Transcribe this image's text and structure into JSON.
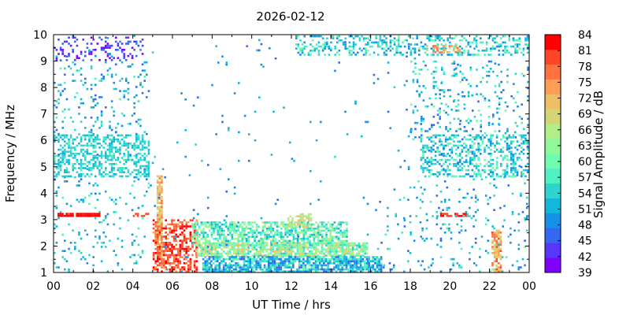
{
  "chart_data": {
    "type": "heatmap",
    "title": "2026-02-12",
    "xlabel": "UT Time / hrs",
    "ylabel": "Frequency / MHz",
    "colorbar_label": "Signal Amplitude / dB",
    "xlim": [
      0,
      24
    ],
    "ylim": [
      1,
      10
    ],
    "x_ticks": [
      "00",
      "02",
      "04",
      "06",
      "08",
      "10",
      "12",
      "14",
      "16",
      "18",
      "20",
      "22",
      "00"
    ],
    "y_ticks": [
      "1",
      "2",
      "3",
      "4",
      "5",
      "6",
      "7",
      "8",
      "9",
      "10"
    ],
    "colorbar_ticks": [
      "39",
      "42",
      "45",
      "48",
      "51",
      "54",
      "57",
      "60",
      "63",
      "66",
      "69",
      "72",
      "75",
      "78",
      "81",
      "84"
    ],
    "colorbar_range": [
      39,
      84
    ],
    "colormap": [
      "#7f00ff",
      "#5a35fa",
      "#3568f2",
      "#1591e8",
      "#12b7dc",
      "#2fd4cf",
      "#4ff0c1",
      "#6ffcae",
      "#8ff89a",
      "#b2ee87",
      "#d4d676",
      "#eec066",
      "#fe9e54",
      "#ff7240",
      "#ff4529",
      "#ff0000"
    ],
    "regions": [
      {
        "name": "night-upper-band",
        "t": [
          0.0,
          4.5
        ],
        "f": [
          9.0,
          9.9
        ],
        "db": [
          39,
          48
        ],
        "density": 0.25
      },
      {
        "name": "night-lower-band",
        "t": [
          0.0,
          4.8
        ],
        "f": [
          4.6,
          6.2
        ],
        "db": [
          51,
          57
        ],
        "density": 0.45
      },
      {
        "name": "night-mid-scatter",
        "t": [
          0.0,
          4.8
        ],
        "f": [
          6.2,
          9.0
        ],
        "db": [
          45,
          57
        ],
        "density": 0.1
      },
      {
        "name": "night-low-scatter",
        "t": [
          0.0,
          4.8
        ],
        "f": [
          1.0,
          4.6
        ],
        "db": [
          48,
          57
        ],
        "density": 0.05
      },
      {
        "name": "red-line-left",
        "t": [
          0.2,
          2.3
        ],
        "f": [
          3.1,
          3.2
        ],
        "db": [
          81,
          84
        ],
        "density": 0.9
      },
      {
        "name": "red-line-mid",
        "t": [
          4.0,
          4.8
        ],
        "f": [
          3.1,
          3.2
        ],
        "db": [
          78,
          81
        ],
        "density": 0.5
      },
      {
        "name": "dawn-spike",
        "t": [
          5.2,
          5.5
        ],
        "f": [
          1.5,
          4.6
        ],
        "db": [
          66,
          78
        ],
        "density": 0.85
      },
      {
        "name": "dawn-red-block",
        "t": [
          5.0,
          7.2
        ],
        "f": [
          1.0,
          3.0
        ],
        "db": [
          75,
          84
        ],
        "density": 0.55
      },
      {
        "name": "day-band-upper",
        "t": [
          7.0,
          14.8
        ],
        "f": [
          2.0,
          2.9
        ],
        "db": [
          51,
          66
        ],
        "density": 0.65
      },
      {
        "name": "day-band-mid",
        "t": [
          7.2,
          15.8
        ],
        "f": [
          1.6,
          2.1
        ],
        "db": [
          54,
          72
        ],
        "density": 0.75
      },
      {
        "name": "day-band-lower",
        "t": [
          7.5,
          16.5
        ],
        "f": [
          1.0,
          1.6
        ],
        "db": [
          45,
          60
        ],
        "density": 0.8
      },
      {
        "name": "day-bump-orange",
        "t": [
          11.8,
          13.0
        ],
        "f": [
          2.7,
          3.2
        ],
        "db": [
          63,
          72
        ],
        "density": 0.6
      },
      {
        "name": "evening-upper",
        "t": [
          12.2,
          24.0
        ],
        "f": [
          9.2,
          9.9
        ],
        "db": [
          48,
          60
        ],
        "density": 0.35
      },
      {
        "name": "evening-orange",
        "t": [
          18.8,
          20.5
        ],
        "f": [
          9.3,
          9.6
        ],
        "db": [
          69,
          78
        ],
        "density": 0.45
      },
      {
        "name": "evening-mid",
        "t": [
          18.0,
          24.0
        ],
        "f": [
          6.0,
          9.0
        ],
        "db": [
          45,
          60
        ],
        "density": 0.12
      },
      {
        "name": "evening-lower",
        "t": [
          18.5,
          24.0
        ],
        "f": [
          4.6,
          6.2
        ],
        "db": [
          48,
          60
        ],
        "density": 0.35
      },
      {
        "name": "evening-low-scatter",
        "t": [
          16.5,
          24.0
        ],
        "f": [
          1.0,
          4.6
        ],
        "db": [
          45,
          57
        ],
        "density": 0.05
      },
      {
        "name": "red-line-right",
        "t": [
          19.5,
          20.9
        ],
        "f": [
          3.1,
          3.2
        ],
        "db": [
          78,
          84
        ],
        "density": 0.6
      },
      {
        "name": "late-spike",
        "t": [
          22.1,
          22.6
        ],
        "f": [
          1.0,
          2.6
        ],
        "db": [
          66,
          81
        ],
        "density": 0.7
      },
      {
        "name": "sparse-background",
        "t": [
          0.0,
          24.0
        ],
        "f": [
          1.0,
          10.0
        ],
        "db": [
          45,
          54
        ],
        "density": 0.01
      }
    ]
  }
}
